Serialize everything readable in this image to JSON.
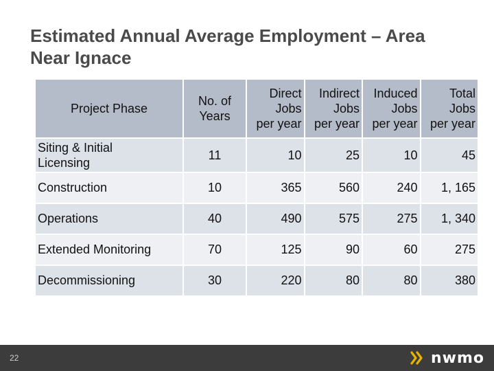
{
  "slide": {
    "title_line1": "Estimated Annual Average Employment – Area",
    "title_line2": "Near Ignace"
  },
  "table": {
    "headers": {
      "phase": "Project Phase",
      "years_line1": "No. of",
      "years_line2": "Years",
      "direct": [
        "Direct",
        "Jobs",
        "per year"
      ],
      "indirect": [
        "Indirect",
        "Jobs",
        "per year"
      ],
      "induced": [
        "Induced",
        "Jobs",
        "per year"
      ],
      "total": [
        "Total",
        "Jobs",
        "per year"
      ]
    },
    "rows": [
      {
        "phase_line1": "Siting & Initial",
        "phase_line2": "Licensing",
        "years": "11",
        "direct": "10",
        "indirect": "25",
        "induced": "10",
        "total": "45"
      },
      {
        "phase_line1": "Construction",
        "phase_line2": "",
        "years": "10",
        "direct": "365",
        "indirect": "560",
        "induced": "240",
        "total": "1, 165"
      },
      {
        "phase_line1": "Operations",
        "phase_line2": "",
        "years": "40",
        "direct": "490",
        "indirect": "575",
        "induced": "275",
        "total": "1, 340"
      },
      {
        "phase_line1": "Extended Monitoring",
        "phase_line2": "",
        "years": "70",
        "direct": "125",
        "indirect": "90",
        "induced": "60",
        "total": "275"
      },
      {
        "phase_line1": "Decommissioning",
        "phase_line2": "",
        "years": "30",
        "direct": "220",
        "indirect": "80",
        "induced": "80",
        "total": "380"
      }
    ]
  },
  "footer": {
    "page_number": "22",
    "logo_text": "nwmo",
    "logo_icon": "nwmo-chevron-logo-icon",
    "logo_color": "#e8b400",
    "background": "#3c3c3c"
  }
}
